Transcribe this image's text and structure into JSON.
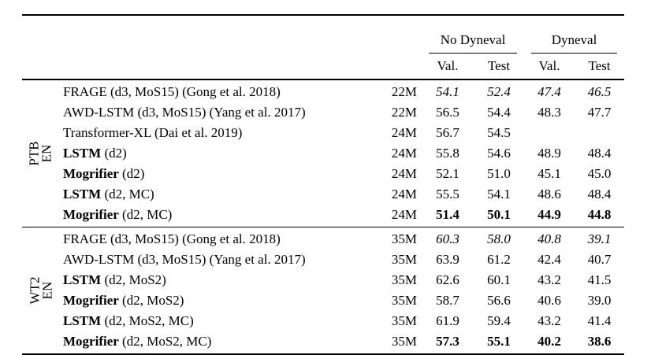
{
  "table": {
    "col_groups": [
      {
        "label": "No Dyneval"
      },
      {
        "label": "Dyneval"
      }
    ],
    "sub_headers": [
      "Val.",
      "Test",
      "Val.",
      "Test"
    ],
    "sections": [
      {
        "row_label_lines": [
          "PTB",
          "EN"
        ],
        "rows": [
          {
            "model_bold": "",
            "model_rest": "FRAGE (d3, MoS15) (Gong et al. 2018)",
            "size": "22M",
            "values": [
              "54.1",
              "52.4",
              "47.4",
              "46.5"
            ],
            "emphasis": "italic"
          },
          {
            "model_bold": "",
            "model_rest": "AWD-LSTM (d3, MoS15) (Yang et al. 2017)",
            "size": "22M",
            "values": [
              "56.5",
              "54.4",
              "48.3",
              "47.7"
            ],
            "emphasis": "none"
          },
          {
            "model_bold": "",
            "model_rest": "Transformer-XL (Dai et al. 2019)",
            "size": "24M",
            "values": [
              "56.7",
              "54.5",
              "",
              ""
            ],
            "emphasis": "none"
          },
          {
            "model_bold": "LSTM",
            "model_rest": " (d2)",
            "size": "24M",
            "values": [
              "55.8",
              "54.6",
              "48.9",
              "48.4"
            ],
            "emphasis": "none"
          },
          {
            "model_bold": "Mogrifier",
            "model_rest": " (d2)",
            "size": "24M",
            "values": [
              "52.1",
              "51.0",
              "45.1",
              "45.0"
            ],
            "emphasis": "none"
          },
          {
            "model_bold": "LSTM",
            "model_rest": " (d2, MC)",
            "size": "24M",
            "values": [
              "55.5",
              "54.1",
              "48.6",
              "48.4"
            ],
            "emphasis": "none"
          },
          {
            "model_bold": "Mogrifier",
            "model_rest": " (d2, MC)",
            "size": "24M",
            "values": [
              "51.4",
              "50.1",
              "44.9",
              "44.8"
            ],
            "emphasis": "bold"
          }
        ]
      },
      {
        "row_label_lines": [
          "WT2",
          "EN"
        ],
        "rows": [
          {
            "model_bold": "",
            "model_rest": "FRAGE (d3, MoS15) (Gong et al. 2018)",
            "size": "35M",
            "values": [
              "60.3",
              "58.0",
              "40.8",
              "39.1"
            ],
            "emphasis": "italic"
          },
          {
            "model_bold": "",
            "model_rest": "AWD-LSTM (d3, MoS15) (Yang et al. 2017)",
            "size": "35M",
            "values": [
              "63.9",
              "61.2",
              "42.4",
              "40.7"
            ],
            "emphasis": "none"
          },
          {
            "model_bold": "LSTM",
            "model_rest": " (d2, MoS2)",
            "size": "35M",
            "values": [
              "62.6",
              "60.1",
              "43.2",
              "41.5"
            ],
            "emphasis": "none"
          },
          {
            "model_bold": "Mogrifier",
            "model_rest": " (d2, MoS2)",
            "size": "35M",
            "values": [
              "58.7",
              "56.6",
              "40.6",
              "39.0"
            ],
            "emphasis": "none"
          },
          {
            "model_bold": "LSTM",
            "model_rest": " (d2, MoS2, MC)",
            "size": "35M",
            "values": [
              "61.9",
              "59.4",
              "43.2",
              "41.4"
            ],
            "emphasis": "none"
          },
          {
            "model_bold": "Mogrifier",
            "model_rest": " (d2, MoS2, MC)",
            "size": "35M",
            "values": [
              "57.3",
              "55.1",
              "40.2",
              "38.6"
            ],
            "emphasis": "bold"
          }
        ]
      }
    ]
  }
}
